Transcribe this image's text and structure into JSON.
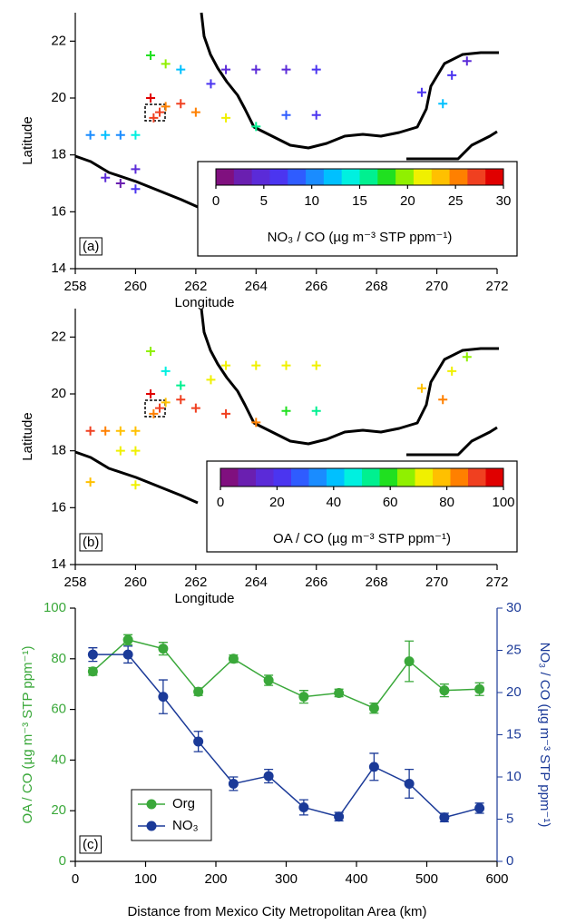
{
  "chart_data": [
    {
      "type": "map-scatter",
      "panel_label": "(a)",
      "xlabel": "Longitude",
      "ylabel": "Latitude",
      "xlim": [
        258,
        272
      ],
      "xticks": [
        258,
        260,
        262,
        264,
        266,
        268,
        270,
        272
      ],
      "ylim": [
        14,
        23
      ],
      "yticks": [
        14,
        16,
        18,
        20,
        22
      ],
      "x": [
        260.8,
        260.6,
        261.0,
        260.5,
        261.5,
        258.5,
        259.0,
        259.5,
        260.0,
        260.0,
        259.5,
        259.0,
        260.0,
        260.5,
        261.0,
        261.5,
        262.5,
        263.0,
        264.0,
        265.0,
        266.0,
        262.0,
        263.0,
        264.0,
        265.0,
        266.0,
        269.5,
        270.5,
        270.2,
        271.0
      ],
      "y": [
        19.5,
        19.3,
        19.7,
        20.0,
        19.8,
        18.7,
        18.7,
        18.7,
        18.7,
        17.5,
        17.0,
        17.2,
        16.8,
        21.5,
        21.2,
        21.0,
        20.5,
        21.0,
        21.0,
        21.0,
        21.0,
        19.5,
        19.3,
        19.0,
        19.4,
        19.4,
        20.2,
        20.8,
        19.8,
        21.3
      ],
      "values": [
        28,
        27,
        25,
        30,
        28,
        10,
        12,
        10,
        14,
        5,
        3,
        4,
        6,
        18,
        20,
        12,
        6,
        5,
        4,
        5,
        6,
        25,
        22,
        15,
        8,
        7,
        7,
        6,
        12,
        5
      ],
      "colorbar": {
        "label": "NO₃ / CO (µg m⁻³ STP ppm⁻¹)",
        "lim": [
          0,
          30
        ],
        "ticks": [
          0,
          5,
          10,
          15,
          20,
          25,
          30
        ],
        "colors": [
          "#80107f",
          "#6a1fb0",
          "#5b2bd8",
          "#4b35f0",
          "#2f5cff",
          "#1a8cff",
          "#00c0ff",
          "#00f0e0",
          "#00f090",
          "#20e020",
          "#90f000",
          "#f0f000",
          "#ffc000",
          "#ff8000",
          "#f04020",
          "#e00000"
        ]
      }
    },
    {
      "type": "map-scatter",
      "panel_label": "(b)",
      "xlabel": "Longitude",
      "ylabel": "Latitude",
      "xlim": [
        258,
        272
      ],
      "xticks": [
        258,
        260,
        262,
        264,
        266,
        268,
        270,
        272
      ],
      "ylim": [
        14,
        23
      ],
      "yticks": [
        14,
        16,
        18,
        20,
        22
      ],
      "x": [
        260.8,
        260.6,
        261.0,
        260.5,
        261.5,
        258.5,
        259.0,
        259.5,
        260.0,
        260.0,
        259.5,
        258.5,
        260.0,
        260.5,
        261.0,
        261.5,
        262.5,
        263.0,
        264.0,
        265.0,
        266.0,
        262.0,
        263.0,
        264.0,
        265.0,
        266.0,
        269.5,
        270.5,
        270.2,
        271.0
      ],
      "y": [
        19.5,
        19.3,
        19.7,
        20.0,
        19.8,
        18.7,
        18.7,
        18.7,
        18.7,
        18.0,
        18.0,
        16.9,
        16.8,
        21.5,
        20.8,
        20.3,
        20.5,
        21.0,
        21.0,
        21.0,
        21.0,
        19.5,
        19.3,
        19.0,
        19.4,
        19.4,
        20.2,
        20.8,
        19.8,
        21.3
      ],
      "values": [
        90,
        85,
        80,
        95,
        90,
        88,
        85,
        80,
        75,
        70,
        70,
        75,
        70,
        65,
        45,
        55,
        70,
        70,
        72,
        70,
        72,
        88,
        90,
        85,
        60,
        55,
        75,
        70,
        85,
        65
      ],
      "colorbar": {
        "label": "OA / CO (µg m⁻³ STP ppm⁻¹)",
        "lim": [
          0,
          100
        ],
        "ticks": [
          0,
          20,
          40,
          60,
          80,
          100
        ],
        "colors": [
          "#80107f",
          "#6a1fb0",
          "#5b2bd8",
          "#4b35f0",
          "#2f5cff",
          "#1a8cff",
          "#00c0ff",
          "#00f0e0",
          "#00f090",
          "#20e020",
          "#90f000",
          "#f0f000",
          "#ffc000",
          "#ff8000",
          "#f04020",
          "#e00000"
        ]
      }
    },
    {
      "type": "line",
      "panel_label": "(c)",
      "xlabel": "Distance from Mexico City Metropolitan Area (km)",
      "ylabel": "OA / CO (µg m⁻³ STP ppm⁻¹)",
      "y2label": "NO₃ / CO (µg m⁻³ STP ppm⁻¹)",
      "xlim": [
        0,
        600
      ],
      "xticks": [
        0,
        100,
        200,
        300,
        400,
        500,
        600
      ],
      "ylim": [
        0,
        100
      ],
      "yticks": [
        0,
        20,
        40,
        60,
        80,
        100
      ],
      "y2lim": [
        0,
        30
      ],
      "y2ticks": [
        0,
        5,
        10,
        15,
        20,
        25,
        30
      ],
      "x": [
        25,
        75,
        125,
        175,
        225,
        275,
        325,
        375,
        425,
        475,
        525,
        575
      ],
      "series": [
        {
          "name": "Org",
          "color": "#3aa83a",
          "values": [
            75,
            87.5,
            84,
            67,
            80,
            71.5,
            65,
            66.5,
            60.5,
            79,
            67.5,
            68
          ],
          "errors": [
            1.5,
            2,
            2.5,
            1.5,
            1.5,
            2,
            2.5,
            1.5,
            2,
            8,
            2.5,
            2.5
          ]
        },
        {
          "name": "NO₃",
          "color": "#1b3a98",
          "axis": "y2",
          "values": [
            24.5,
            24.5,
            19.5,
            14.2,
            9.2,
            10.1,
            6.4,
            5.3,
            11.2,
            9.2,
            5.2,
            6.3
          ],
          "errors": [
            0.8,
            1,
            2,
            1.2,
            0.8,
            0.8,
            0.9,
            0.5,
            1.6,
            1.7,
            0.5,
            0.6
          ]
        }
      ]
    }
  ]
}
